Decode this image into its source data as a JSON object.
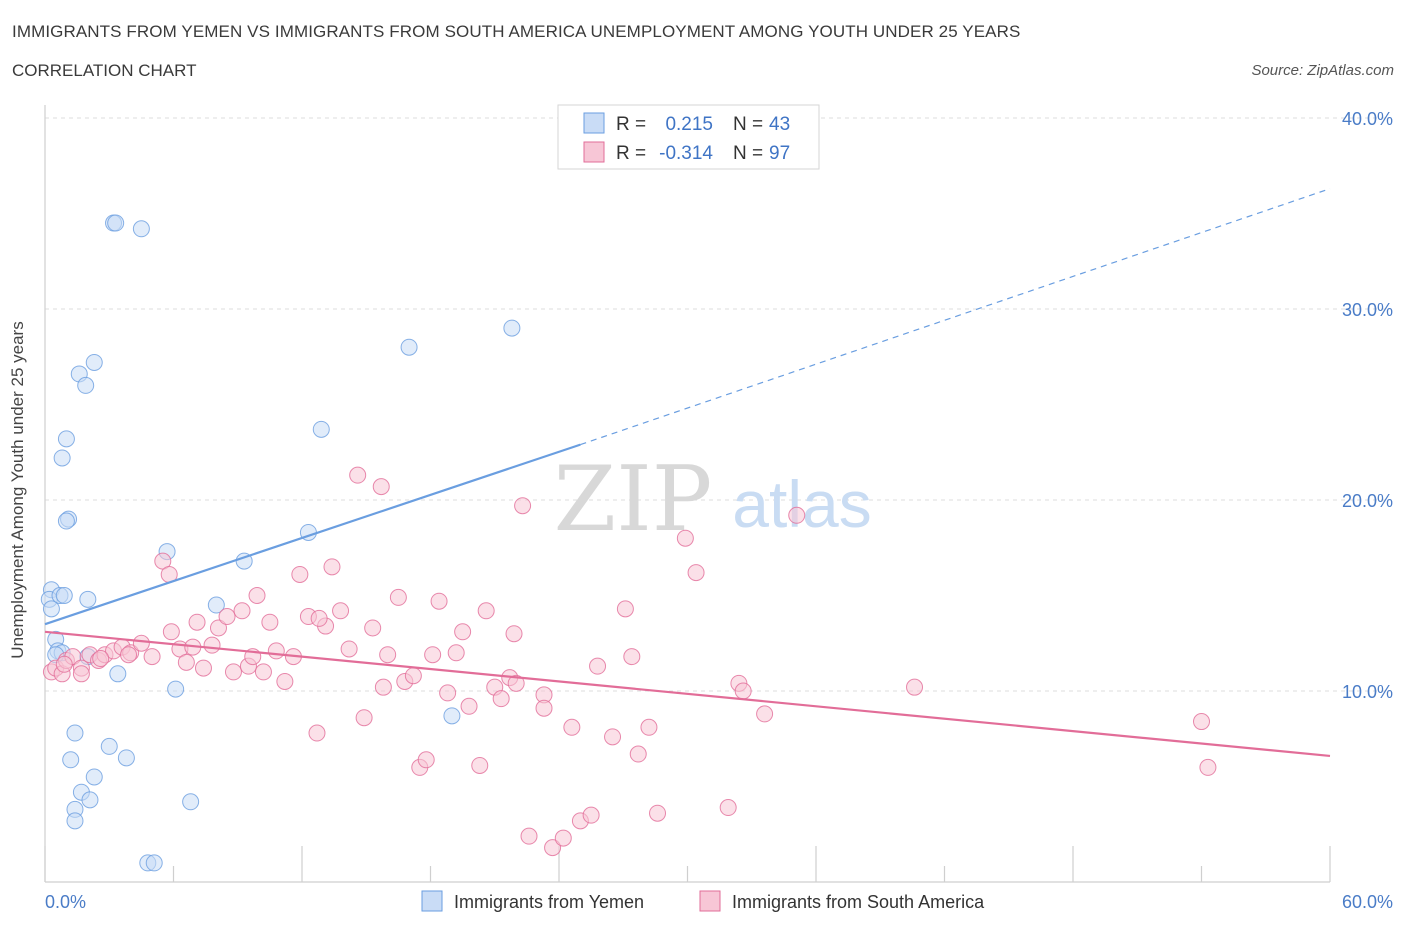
{
  "title": "IMMIGRANTS FROM YEMEN VS IMMIGRANTS FROM SOUTH AMERICA UNEMPLOYMENT AMONG YOUTH UNDER 25 YEARS",
  "subtitle": "CORRELATION CHART",
  "source": "Source: ZipAtlas.com",
  "watermark": {
    "zip": "ZIP",
    "atlas": "atlas"
  },
  "chart_data": {
    "type": "scatter",
    "xlabel": "",
    "ylabel": "Unemployment Among Youth under 25 years",
    "xlim": [
      0,
      60
    ],
    "ylim": [
      0,
      40
    ],
    "x_tick_labels": [
      "0.0%",
      "60.0%"
    ],
    "y_ticks": [
      10,
      20,
      30,
      40
    ],
    "y_tick_labels": [
      "10.0%",
      "20.0%",
      "30.0%",
      "40.0%"
    ],
    "grid": true,
    "legend_position": "bottom",
    "stats": [
      {
        "r_label": "R =",
        "r_value": "0.215",
        "n_label": "N =",
        "n_value": "43"
      },
      {
        "r_label": "R =",
        "r_value": "-0.314",
        "n_label": "N =",
        "n_value": "97"
      }
    ],
    "series": [
      {
        "name": "Immigrants from Yemen",
        "color": "#6a9ee0",
        "fill": "#c9dcf6",
        "trend": {
          "x": [
            0,
            25
          ],
          "y": [
            13.5,
            22.9
          ]
        },
        "trend_dashed": {
          "x": [
            25,
            60
          ],
          "y": [
            22.9,
            36.3
          ]
        },
        "points": [
          [
            0.3,
            15.3
          ],
          [
            0.2,
            14.8
          ],
          [
            0.3,
            14.3
          ],
          [
            0.7,
            15.0
          ],
          [
            0.9,
            15.0
          ],
          [
            0.5,
            12.7
          ],
          [
            0.6,
            12.1
          ],
          [
            0.8,
            12.0
          ],
          [
            0.5,
            11.9
          ],
          [
            2.0,
            14.8
          ],
          [
            2.0,
            11.8
          ],
          [
            1.0,
            23.2
          ],
          [
            0.8,
            22.2
          ],
          [
            1.1,
            19.0
          ],
          [
            1.0,
            18.9
          ],
          [
            1.6,
            26.6
          ],
          [
            1.9,
            26.0
          ],
          [
            2.3,
            27.2
          ],
          [
            3.2,
            34.5
          ],
          [
            3.3,
            34.5
          ],
          [
            4.5,
            34.2
          ],
          [
            5.7,
            17.3
          ],
          [
            8.0,
            14.5
          ],
          [
            9.3,
            16.8
          ],
          [
            12.3,
            18.3
          ],
          [
            12.9,
            23.7
          ],
          [
            17.0,
            28.0
          ],
          [
            21.8,
            29.0
          ],
          [
            19.0,
            8.7
          ],
          [
            6.1,
            10.1
          ],
          [
            3.4,
            10.9
          ],
          [
            1.4,
            7.8
          ],
          [
            1.2,
            6.4
          ],
          [
            2.3,
            5.5
          ],
          [
            3.0,
            7.1
          ],
          [
            3.8,
            6.5
          ],
          [
            1.7,
            4.7
          ],
          [
            1.4,
            3.8
          ],
          [
            2.1,
            4.3
          ],
          [
            1.4,
            3.2
          ],
          [
            6.8,
            4.2
          ],
          [
            4.8,
            1.0
          ],
          [
            5.1,
            1.0
          ]
        ]
      },
      {
        "name": "Immigrants from South America",
        "color": "#e26d98",
        "fill": "#f7c6d6",
        "trend": {
          "x": [
            0,
            60
          ],
          "y": [
            13.1,
            6.6
          ]
        },
        "points": [
          [
            0.3,
            11.0
          ],
          [
            0.5,
            11.2
          ],
          [
            0.8,
            10.9
          ],
          [
            1.0,
            11.6
          ],
          [
            1.3,
            11.8
          ],
          [
            1.7,
            11.2
          ],
          [
            2.1,
            11.9
          ],
          [
            2.5,
            11.6
          ],
          [
            2.8,
            11.9
          ],
          [
            3.2,
            12.1
          ],
          [
            3.6,
            12.3
          ],
          [
            4.0,
            12.0
          ],
          [
            4.5,
            12.5
          ],
          [
            5.0,
            11.8
          ],
          [
            5.5,
            16.8
          ],
          [
            5.8,
            16.1
          ],
          [
            5.9,
            13.1
          ],
          [
            6.3,
            12.2
          ],
          [
            6.6,
            11.5
          ],
          [
            7.1,
            13.6
          ],
          [
            7.4,
            11.2
          ],
          [
            7.8,
            12.4
          ],
          [
            8.1,
            13.3
          ],
          [
            8.5,
            13.9
          ],
          [
            8.8,
            11.0
          ],
          [
            9.2,
            14.2
          ],
          [
            9.5,
            11.3
          ],
          [
            9.9,
            15.0
          ],
          [
            10.2,
            11.0
          ],
          [
            10.5,
            13.6
          ],
          [
            10.8,
            12.1
          ],
          [
            11.2,
            10.5
          ],
          [
            11.6,
            11.8
          ],
          [
            11.9,
            16.1
          ],
          [
            12.3,
            13.9
          ],
          [
            12.7,
            7.8
          ],
          [
            13.1,
            13.4
          ],
          [
            13.4,
            16.5
          ],
          [
            13.8,
            14.2
          ],
          [
            14.2,
            12.2
          ],
          [
            14.6,
            21.3
          ],
          [
            14.9,
            8.6
          ],
          [
            15.3,
            13.3
          ],
          [
            15.7,
            20.7
          ],
          [
            16.0,
            11.9
          ],
          [
            16.5,
            14.9
          ],
          [
            16.8,
            10.5
          ],
          [
            17.2,
            10.8
          ],
          [
            17.5,
            6.0
          ],
          [
            17.8,
            6.4
          ],
          [
            18.1,
            11.9
          ],
          [
            18.4,
            14.7
          ],
          [
            18.8,
            9.9
          ],
          [
            19.2,
            12.0
          ],
          [
            19.5,
            13.1
          ],
          [
            19.8,
            9.2
          ],
          [
            20.3,
            6.1
          ],
          [
            20.6,
            14.2
          ],
          [
            21.0,
            10.2
          ],
          [
            21.3,
            9.6
          ],
          [
            21.7,
            10.7
          ],
          [
            22.0,
            10.4
          ],
          [
            22.3,
            19.7
          ],
          [
            22.6,
            2.4
          ],
          [
            23.3,
            9.8
          ],
          [
            23.3,
            9.1
          ],
          [
            23.7,
            1.8
          ],
          [
            24.2,
            2.3
          ],
          [
            24.6,
            8.1
          ],
          [
            25.0,
            3.2
          ],
          [
            25.5,
            3.5
          ],
          [
            25.8,
            11.3
          ],
          [
            26.5,
            7.6
          ],
          [
            27.1,
            14.3
          ],
          [
            27.4,
            11.8
          ],
          [
            27.7,
            6.7
          ],
          [
            28.2,
            8.1
          ],
          [
            28.6,
            3.6
          ],
          [
            29.9,
            18.0
          ],
          [
            30.4,
            16.2
          ],
          [
            31.9,
            3.9
          ],
          [
            32.4,
            10.4
          ],
          [
            32.6,
            10.0
          ],
          [
            33.6,
            8.8
          ],
          [
            35.1,
            19.2
          ],
          [
            40.6,
            10.2
          ],
          [
            54.0,
            8.4
          ],
          [
            54.3,
            6.0
          ],
          [
            0.9,
            11.4
          ],
          [
            1.7,
            10.9
          ],
          [
            2.6,
            11.7
          ],
          [
            3.9,
            11.9
          ],
          [
            6.9,
            12.3
          ],
          [
            9.7,
            11.8
          ],
          [
            12.8,
            13.8
          ],
          [
            15.8,
            10.2
          ],
          [
            21.9,
            13.0
          ]
        ]
      }
    ]
  },
  "legend": {
    "items": [
      {
        "label": "Immigrants from Yemen"
      },
      {
        "label": "Immigrants from South America"
      }
    ]
  }
}
